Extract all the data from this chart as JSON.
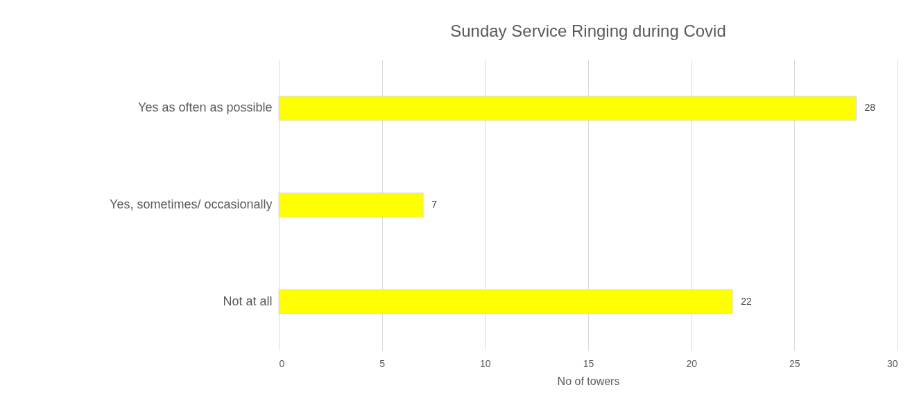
{
  "chart_data": {
    "type": "bar",
    "orientation": "horizontal",
    "title": "Sunday Service Ringing during Covid",
    "xlabel": "No of towers",
    "categories": [
      "Yes as often as possible",
      "Yes, sometimes/ occasionally",
      "Not at all"
    ],
    "values": [
      28,
      7,
      22
    ],
    "color": "#ffff00",
    "xlim": [
      0,
      30
    ],
    "xticks": [
      0,
      5,
      10,
      15,
      20,
      25,
      30
    ],
    "grid": "x",
    "data_labels": true
  }
}
